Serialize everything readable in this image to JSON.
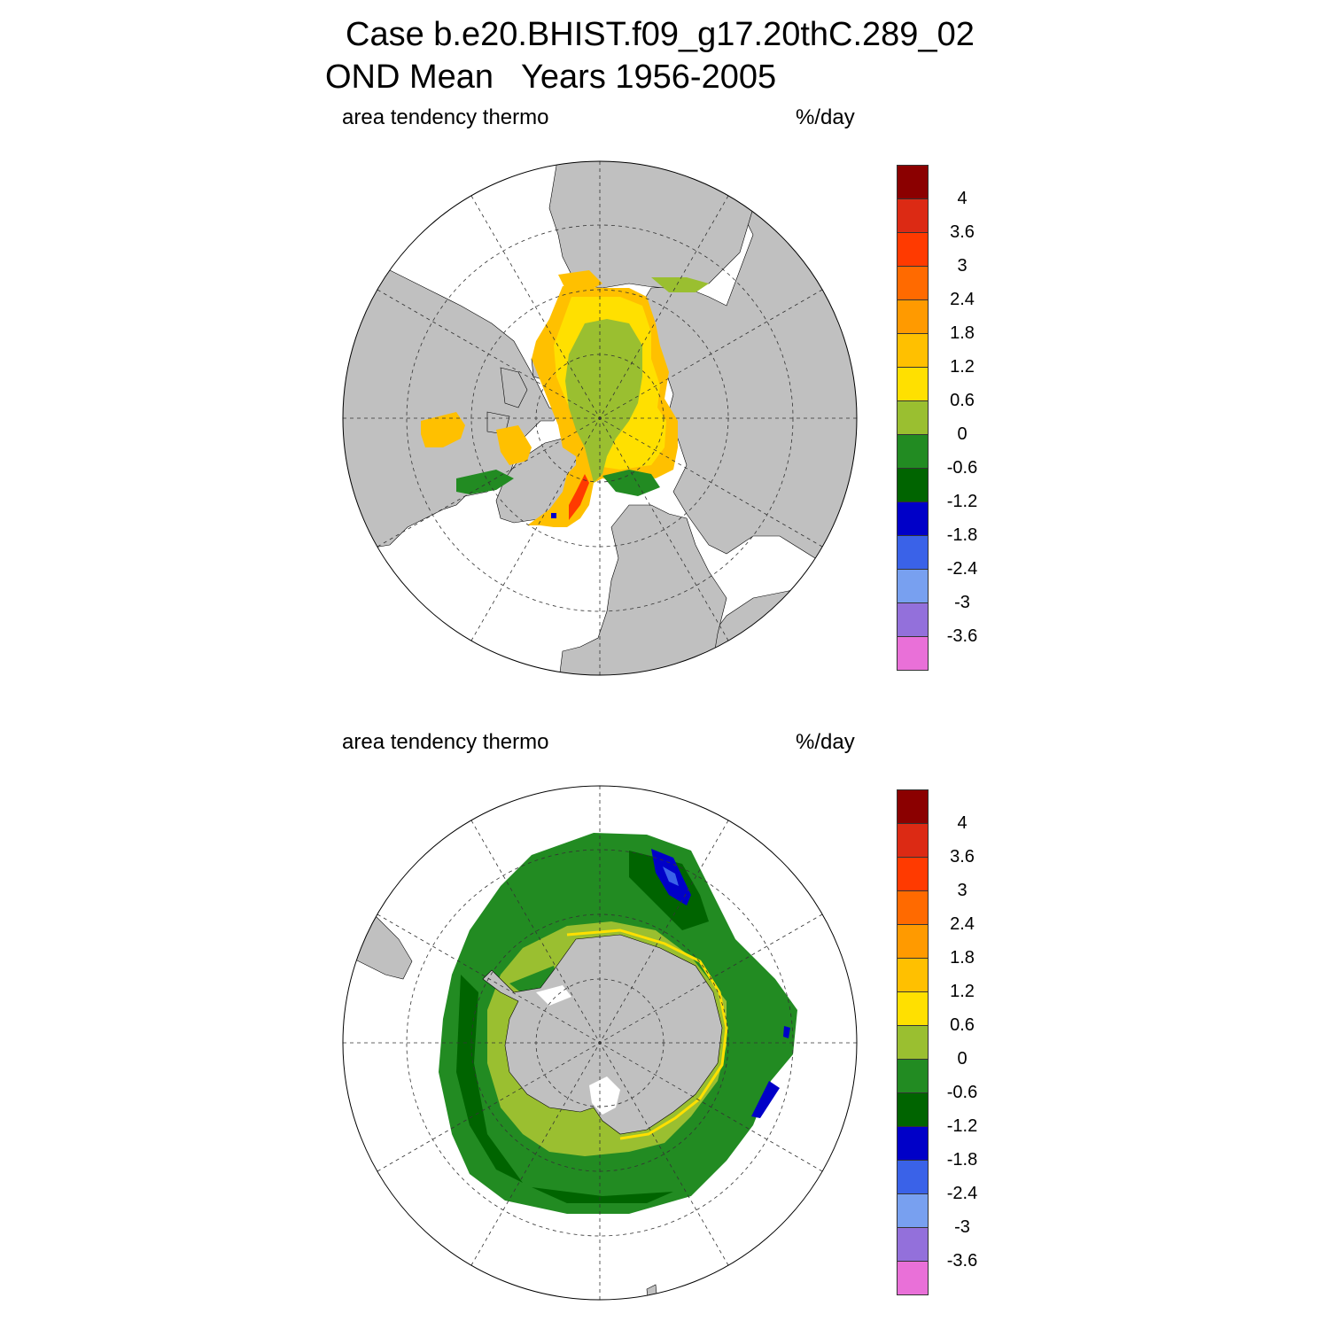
{
  "title": {
    "line1": "Case b.e20.BHIST.f09_g17.20thC.289_02",
    "line2": "OND Mean   Years 1956-2005"
  },
  "panels": [
    {
      "id": "north",
      "left_label": "area tendency thermo",
      "right_label": "%/day"
    },
    {
      "id": "south",
      "left_label": "area tendency thermo",
      "right_label": "%/day"
    }
  ],
  "colorbar": {
    "colors": [
      "#e970d8",
      "#9370db",
      "#78a0f0",
      "#3a62e8",
      "#0000c8",
      "#006400",
      "#228b22",
      "#9abf30",
      "#ffe000",
      "#ffc000",
      "#ff9a00",
      "#ff6a00",
      "#ff3a00",
      "#dc2a14",
      "#8b0000"
    ],
    "labels": [
      "-3.6",
      "-3",
      "-2.4",
      "-1.8",
      "-1.2",
      "-0.6",
      "0",
      "0.6",
      "1.2",
      "1.8",
      "2.4",
      "3",
      "3.6",
      "4"
    ]
  },
  "colors": {
    "land": "#c0c0c0",
    "ocean": "#ffffff",
    "grid": "#333333"
  }
}
